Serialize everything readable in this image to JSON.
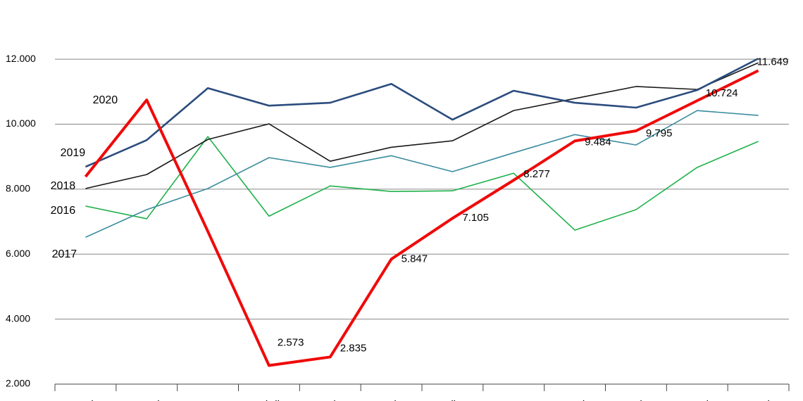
{
  "chart_data": {
    "type": "line",
    "categories": [
      "Janeiro",
      "Fevereiro",
      "Março",
      "Abril",
      "Maio",
      "Junho",
      "Julho",
      "Agosto",
      "Setembro",
      "Outubro",
      "Novembro",
      "Dezembro"
    ],
    "ylim": [
      2000,
      13000
    ],
    "yticks": [
      {
        "value": 2000,
        "label": "2.000"
      },
      {
        "value": 4000,
        "label": "4.000"
      },
      {
        "value": 6000,
        "label": "6.000"
      },
      {
        "value": 8000,
        "label": "8.000"
      },
      {
        "value": 10000,
        "label": "10.000"
      },
      {
        "value": 12000,
        "label": "12.000"
      }
    ],
    "grid": true,
    "series": [
      {
        "name": "2016",
        "color": "#1fb14a",
        "width": 1.6,
        "values": [
          7480,
          7090,
          9620,
          7170,
          8100,
          7930,
          7950,
          8490,
          6740,
          7370,
          8670,
          9470
        ]
      },
      {
        "name": "2017",
        "color": "#3a8c9e",
        "width": 1.6,
        "values": [
          6520,
          7370,
          8020,
          8970,
          8670,
          9030,
          8540,
          9120,
          9680,
          9360,
          10420,
          10270
        ]
      },
      {
        "name": "2018",
        "color": "#1a1a1a",
        "width": 1.6,
        "values": [
          8020,
          8450,
          9530,
          10010,
          8860,
          9290,
          9490,
          10420,
          10790,
          11160,
          11070,
          11890
        ]
      },
      {
        "name": "2019",
        "color": "#2b4c7e",
        "width": 2.6,
        "values": [
          8690,
          9510,
          11110,
          10570,
          10660,
          11240,
          10140,
          11030,
          10660,
          10510,
          11050,
          12020
        ]
      },
      {
        "name": "2020",
        "color": "#f00a0a",
        "width": 4,
        "values": [
          8385,
          10745,
          6700,
          2573,
          2835,
          5847,
          7105,
          8277,
          9484,
          9795,
          10724,
          11649
        ],
        "value_labels": [
          null,
          null,
          null,
          "2.573",
          "2.835",
          "5.847",
          "7.105",
          "8.277",
          "9.484",
          "9.795",
          "10.724",
          "11.649"
        ]
      }
    ]
  }
}
